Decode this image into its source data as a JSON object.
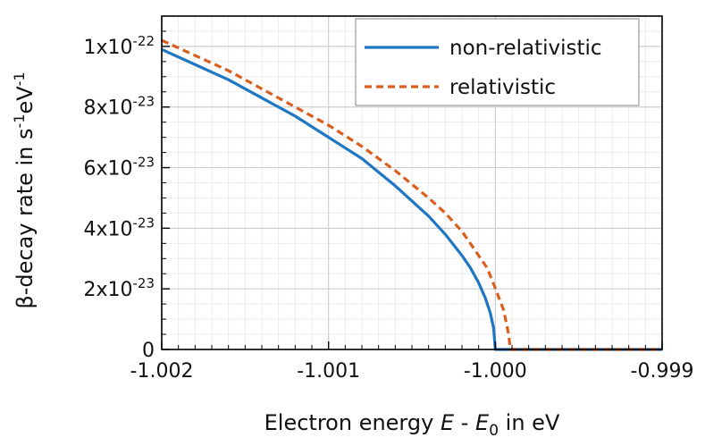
{
  "chart_data": {
    "type": "line",
    "xlabel": {
      "pre": "Electron energy ",
      "E": "E",
      "mid": " - ",
      "E0": "E",
      "sub": "0",
      "post": " in eV"
    },
    "ylabel": {
      "pre": "β-decay rate in s",
      "sup1": "-1",
      "mid": "eV",
      "sup2": "-1"
    },
    "xlim": [
      -1.002,
      -0.999
    ],
    "ylim": [
      0,
      1.1e-22
    ],
    "x_ticks": [
      {
        "value": -1.002,
        "label": "-1.002"
      },
      {
        "value": -1.001,
        "label": "-1.001"
      },
      {
        "value": -1.0,
        "label": "-1.000"
      },
      {
        "value": -0.999,
        "label": "-0.999"
      }
    ],
    "y_ticks": [
      {
        "value": 0,
        "base": "0",
        "exp": ""
      },
      {
        "value": 2e-23,
        "base": "2x10",
        "exp": "-23"
      },
      {
        "value": 4e-23,
        "base": "4x10",
        "exp": "-23"
      },
      {
        "value": 6e-23,
        "base": "6x10",
        "exp": "-23"
      },
      {
        "value": 8e-23,
        "base": "8x10",
        "exp": "-23"
      },
      {
        "value": 1e-22,
        "base": "1x10",
        "exp": "-22"
      }
    ],
    "grid": true,
    "legend_position": "top-right",
    "series": [
      {
        "name": "non-relativistic",
        "color": "#1f77c4",
        "style": "solid",
        "x": [
          -1.002,
          -1.0018,
          -1.0016,
          -1.0014,
          -1.0012,
          -1.001,
          -1.0008,
          -1.0006,
          -1.0004,
          -1.0003,
          -1.0002,
          -1.00015,
          -1.0001,
          -1.00006,
          -1.00003,
          -1.00001,
          -1.0,
          -0.9999,
          -0.9995,
          -0.999
        ],
        "y": [
          9.9e-23,
          9.4e-23,
          8.9e-23,
          8.3e-23,
          7.7e-23,
          7e-23,
          6.3e-23,
          5.4e-23,
          4.4e-23,
          3.8e-23,
          3.1e-23,
          2.7e-23,
          2.2e-23,
          1.7e-23,
          1.2e-23,
          7e-24,
          0,
          0,
          0,
          0
        ]
      },
      {
        "name": "relativistic",
        "color": "#d95f1e",
        "style": "dashed",
        "x": [
          -1.002,
          -1.0018,
          -1.0016,
          -1.0014,
          -1.0012,
          -1.001,
          -1.0008,
          -1.0006,
          -1.0004,
          -1.0003,
          -1.0002,
          -1.00015,
          -1.0001,
          -1.00005,
          -1.00002,
          -0.99995,
          -0.99992,
          -0.99991,
          -0.9995,
          -0.999
        ],
        "y": [
          1.02e-22,
          9.7e-23,
          9.2e-23,
          8.6e-23,
          8e-23,
          7.4e-23,
          6.7e-23,
          5.9e-23,
          5e-23,
          4.5e-23,
          3.9e-23,
          3.5e-23,
          3.1e-23,
          2.7e-23,
          2.3e-23,
          1.3e-23,
          5e-24,
          0,
          0,
          0
        ]
      }
    ]
  }
}
